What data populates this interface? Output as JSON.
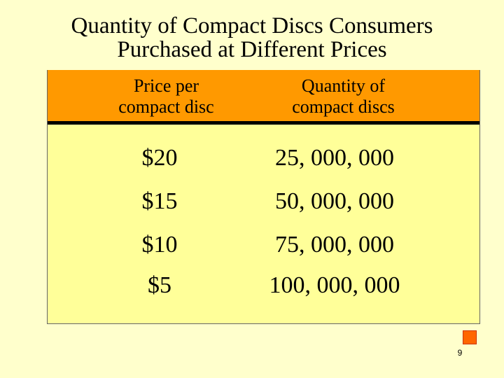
{
  "slide": {
    "title_line1": "Quantity of Compact Discs Consumers",
    "title_line2": "Purchased at Different Prices",
    "page_number": "9"
  },
  "table": {
    "headers": [
      [
        "Price per",
        "compact disc"
      ],
      [
        "Quantity of",
        "compact discs"
      ]
    ],
    "rows": [
      [
        "$20",
        "25, 000, 000"
      ],
      [
        "$15",
        "50, 000, 000"
      ],
      [
        "$10",
        "75, 000, 000"
      ],
      [
        "$5",
        "100, 000, 000"
      ]
    ]
  },
  "colors": {
    "background": "#FFFFCC",
    "table_body": "#FFFF99",
    "header": "#FF9900",
    "accent_square": "#FF6600"
  }
}
